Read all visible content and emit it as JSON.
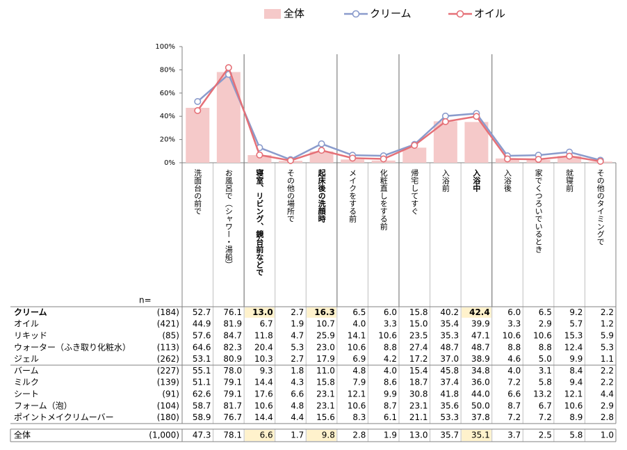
{
  "chart_data": {
    "type": "bar_line",
    "categories": [
      "洗面台の前で",
      "お風呂で（シャワー・湯船）",
      "寝室、リビング、鏡台前などで",
      "その他の場所で",
      "起床後の洗顔時",
      "メイクをする前",
      "化粧直しをする前",
      "帰宅してすぐ",
      "入浴前",
      "入浴中",
      "入浴後",
      "家でくつろいでいるとき",
      "就寝前",
      "その他のタイミングで"
    ],
    "ylim": [
      0,
      100
    ],
    "yticks": [
      {
        "value": 0,
        "label": "0%"
      },
      {
        "value": 20,
        "label": "20%"
      },
      {
        "value": 40,
        "label": "40%"
      },
      {
        "value": 60,
        "label": "60%"
      },
      {
        "value": 80,
        "label": "80%"
      },
      {
        "value": 100,
        "label": "100%"
      }
    ],
    "emphasis_columns": [
      2,
      4,
      9
    ],
    "group_separators_after": [
      1,
      4,
      6,
      9
    ],
    "n_label": "n=",
    "series": [
      {
        "name": "全体",
        "type": "bar",
        "color": "#f5c9c9",
        "n": "(1,000)",
        "values": [
          47.3,
          78.1,
          6.6,
          1.7,
          9.8,
          2.8,
          1.9,
          13.0,
          35.7,
          35.1,
          3.7,
          2.5,
          5.8,
          1.0
        ],
        "value_labels": [
          "47.3",
          "78.1",
          "6.6",
          "1.7",
          "9.8",
          "2.8",
          "1.9",
          "13.0",
          "35.7",
          "35.1",
          "3.7",
          "2.5",
          "5.8",
          "1.0"
        ]
      },
      {
        "name": "クリーム",
        "type": "line",
        "color": "#8a9bcc",
        "n": "(184)",
        "values": [
          52.7,
          76.1,
          13.0,
          2.7,
          16.3,
          6.5,
          6.0,
          15.8,
          40.2,
          42.4,
          6.0,
          6.5,
          9.2,
          2.2
        ],
        "value_labels": [
          "52.7",
          "76.1",
          "13.0",
          "2.7",
          "16.3",
          "6.5",
          "6.0",
          "15.8",
          "40.2",
          "42.4",
          "6.0",
          "6.5",
          "9.2",
          "2.2"
        ]
      },
      {
        "name": "オイル",
        "type": "line",
        "color": "#e57077",
        "n": "(421)",
        "values": [
          44.9,
          81.9,
          6.7,
          1.9,
          10.7,
          4.0,
          3.3,
          15.0,
          35.4,
          39.9,
          3.3,
          2.9,
          5.7,
          1.2
        ],
        "value_labels": [
          "44.9",
          "81.9",
          "6.7",
          "1.9",
          "10.7",
          "4.0",
          "3.3",
          "15.0",
          "35.4",
          "39.9",
          "3.3",
          "2.9",
          "5.7",
          "1.2"
        ]
      }
    ]
  },
  "table": {
    "rows": [
      {
        "name": "リキッド",
        "n": "(85)",
        "values": [
          "57.6",
          "84.7",
          "11.8",
          "4.7",
          "25.9",
          "14.1",
          "10.6",
          "23.5",
          "35.3",
          "47.1",
          "10.6",
          "10.6",
          "15.3",
          "5.9"
        ]
      },
      {
        "name": "ウォーター（ふき取り化粧水）",
        "n": "(113)",
        "values": [
          "64.6",
          "82.3",
          "20.4",
          "5.3",
          "23.0",
          "10.6",
          "8.8",
          "27.4",
          "48.7",
          "48.7",
          "8.8",
          "8.8",
          "12.4",
          "5.3"
        ]
      },
      {
        "name": "ジェル",
        "n": "(262)",
        "values": [
          "53.1",
          "80.9",
          "10.3",
          "2.7",
          "17.9",
          "6.9",
          "4.2",
          "17.2",
          "37.0",
          "38.9",
          "4.6",
          "5.0",
          "9.9",
          "1.1"
        ]
      },
      {
        "name": "バーム",
        "n": "(227)",
        "values": [
          "55.1",
          "78.0",
          "9.3",
          "1.8",
          "11.0",
          "4.8",
          "4.0",
          "15.4",
          "45.8",
          "34.8",
          "4.0",
          "3.1",
          "8.4",
          "2.2"
        ]
      },
      {
        "name": "ミルク",
        "n": "(139)",
        "values": [
          "51.1",
          "79.1",
          "14.4",
          "4.3",
          "15.8",
          "7.9",
          "8.6",
          "18.7",
          "37.4",
          "36.0",
          "7.2",
          "5.8",
          "9.4",
          "2.2"
        ]
      },
      {
        "name": "シート",
        "n": "(91)",
        "values": [
          "62.6",
          "79.1",
          "17.6",
          "6.6",
          "23.1",
          "12.1",
          "9.9",
          "30.8",
          "41.8",
          "44.0",
          "6.6",
          "13.2",
          "12.1",
          "4.4"
        ]
      },
      {
        "name": "フォーム（泡）",
        "n": "(104)",
        "values": [
          "58.7",
          "81.7",
          "10.6",
          "4.8",
          "23.1",
          "10.6",
          "8.7",
          "23.1",
          "35.6",
          "50.0",
          "8.7",
          "6.7",
          "10.6",
          "2.9"
        ]
      },
      {
        "name": "ポイントメイクリムーバー",
        "n": "(180)",
        "values": [
          "58.9",
          "76.7",
          "14.4",
          "4.4",
          "15.6",
          "8.3",
          "6.1",
          "21.1",
          "53.3",
          "37.8",
          "7.2",
          "7.2",
          "8.9",
          "2.8"
        ]
      }
    ]
  }
}
